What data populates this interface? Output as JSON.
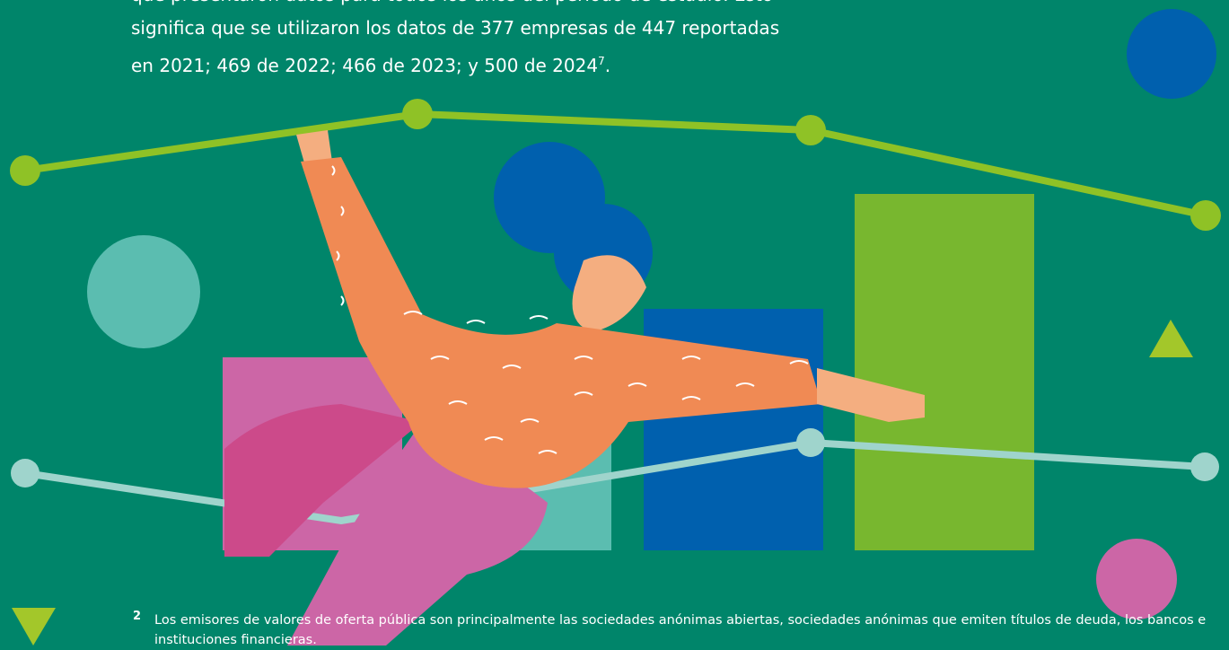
{
  "body": {
    "lines": [
      "que presentaron datos para todos los años del período de estudio. Esto",
      "significa que se utilizaron los datos de 377 empresas de 447 reportadas",
      "en  2021; 469 de 2022; 466 de 2023; y 500 de 2024"
    ],
    "sup": "7",
    "end": "."
  },
  "footnote": {
    "number": "2",
    "text": "Los emisores de valores de oferta pública son principalmente las sociedades anónimas abiertas, sociedades anónimas que emiten títulos de deuda, los bancos e instituciones financieras."
  }
}
